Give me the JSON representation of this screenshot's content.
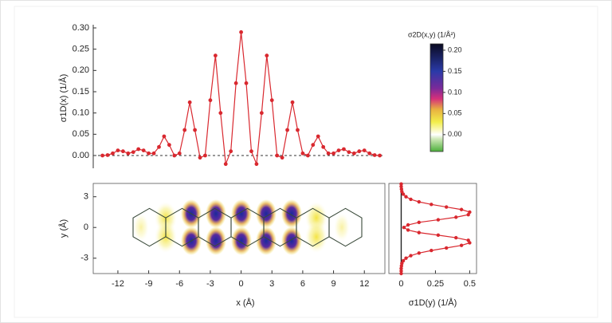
{
  "chart_data": [
    {
      "type": "line",
      "ylabel": "σ1D(x) (1/Å)",
      "color": "#d9282f",
      "xlim": [
        -14.4,
        14
      ],
      "ylim": [
        -0.03,
        0.3
      ],
      "yticks": [
        {
          "value": 0,
          "label": "0.00"
        },
        {
          "value": 0.05,
          "label": "0.05"
        },
        {
          "value": 0.1,
          "label": "0.10"
        },
        {
          "value": 0.15,
          "label": "0.15"
        },
        {
          "value": 0.2,
          "label": "0.20"
        },
        {
          "value": 0.25,
          "label": "0.25"
        },
        {
          "value": 0.3,
          "label": "0.30"
        }
      ],
      "hline": 0,
      "x": [
        -13.5,
        -13,
        -12.5,
        -12,
        -11.5,
        -11,
        -10.5,
        -10,
        -9.5,
        -9,
        -8.5,
        -8,
        -7.5,
        -7,
        -6.5,
        -6,
        -5.5,
        -5,
        -4.5,
        -4,
        -3.5,
        -3,
        -2.5,
        -2,
        -1.5,
        -1,
        -0.5,
        0,
        0.5,
        1,
        1.5,
        2,
        2.5,
        3,
        3.5,
        4,
        4.5,
        5,
        5.5,
        6,
        6.5,
        7,
        7.5,
        8,
        8.5,
        9,
        9.5,
        10,
        10.5,
        11,
        11.5,
        12,
        12.5,
        13,
        13.5
      ],
      "values": [
        0,
        0.001,
        0.005,
        0.012,
        0.01,
        0.005,
        0.008,
        0.015,
        0.012,
        0.005,
        0.005,
        0.02,
        0.045,
        0.025,
        0,
        0.005,
        0.06,
        0.125,
        0.06,
        -0.005,
        0,
        0.13,
        0.235,
        0.1,
        -0.02,
        0.01,
        0.17,
        0.29,
        0.17,
        0.01,
        -0.02,
        0.1,
        0.235,
        0.13,
        0,
        -0.005,
        0.06,
        0.125,
        0.06,
        0.005,
        0,
        0.025,
        0.045,
        0.02,
        0.005,
        0.005,
        0.012,
        0.015,
        0.008,
        0.005,
        0.01,
        0.012,
        0.005,
        0.001,
        0
      ]
    },
    {
      "type": "colorbar",
      "title": "σ2D(x,y) (1/Å²)",
      "ylim": [
        -0.04,
        0.215
      ],
      "yticks": [
        {
          "value": 0,
          "label": "0.00"
        },
        {
          "value": 0.05,
          "label": "0.05"
        },
        {
          "value": 0.1,
          "label": "0.10"
        },
        {
          "value": 0.15,
          "label": "0.15"
        },
        {
          "value": 0.2,
          "label": "0.20"
        }
      ],
      "colormap": [
        {
          "value": -0.04,
          "color": "#4caf3a"
        },
        {
          "value": -0.01,
          "color": "#cfe9b8"
        },
        {
          "value": 0,
          "color": "#ffffff"
        },
        {
          "value": 0.03,
          "color": "#f2ee4a"
        },
        {
          "value": 0.06,
          "color": "#e8b040"
        },
        {
          "value": 0.085,
          "color": "#d6307a"
        },
        {
          "value": 0.11,
          "color": "#7a2a9a"
        },
        {
          "value": 0.15,
          "color": "#2a3aa8"
        },
        {
          "value": 0.215,
          "color": "#0a0a20"
        }
      ]
    },
    {
      "type": "heatmap",
      "xlabel": "x (Å)",
      "ylabel": "y (Å)",
      "xlim": [
        -14.4,
        14
      ],
      "ylim": [
        -4.5,
        4.3
      ],
      "xticks": [
        -12,
        -9,
        -6,
        -3,
        0,
        3,
        6,
        9,
        12
      ],
      "yticks": [
        -3,
        0,
        3
      ]
    },
    {
      "type": "line",
      "orientation": "horizontal",
      "xlabel": "σ1D(y) (1/Å)",
      "color": "#d9282f",
      "xlim": [
        -0.09,
        0.55
      ],
      "ylim": [
        -4.5,
        4.3
      ],
      "xticks": [
        0,
        0.25,
        0.5
      ],
      "vline": 0,
      "y": [
        -4.5,
        -4.25,
        -4,
        -3.75,
        -3.5,
        -3.25,
        -3,
        -2.75,
        -2.5,
        -2.25,
        -2,
        -1.75,
        -1.5,
        -1.25,
        -1,
        -0.75,
        -0.5,
        -0.25,
        0,
        0.25,
        0.5,
        0.75,
        1,
        1.25,
        1.5,
        1.75,
        2,
        2.25,
        2.5,
        2.75,
        3,
        3.25,
        3.5,
        3.75,
        4,
        4.25
      ],
      "values": [
        0,
        0,
        0,
        0.002,
        0.005,
        0.015,
        0.035,
        0.07,
        0.13,
        0.22,
        0.33,
        0.44,
        0.5,
        0.49,
        0.4,
        0.27,
        0.13,
        0.05,
        0.02,
        0.05,
        0.13,
        0.27,
        0.4,
        0.49,
        0.5,
        0.44,
        0.33,
        0.22,
        0.13,
        0.07,
        0.035,
        0.015,
        0.005,
        0.002,
        0,
        0
      ]
    }
  ]
}
